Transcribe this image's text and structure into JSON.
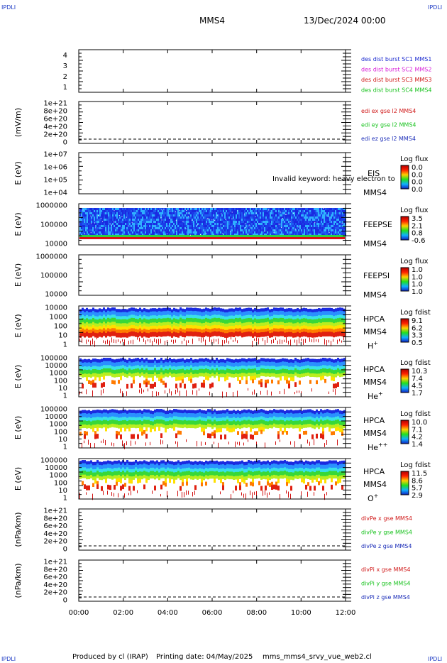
{
  "header": {
    "corner_label": "IPDLI",
    "spacecraft": "MMS4",
    "date_time": "13/Dec/2024 00:00"
  },
  "footer": {
    "produced_by": "Produced by cl (IRAP)",
    "printing_date": "Printing date: 04/May/2025",
    "script_name": "mms_mms4_srvy_vue_web2.cl"
  },
  "colors": {
    "blue": "#1c2bd0",
    "magenta": "#d81fd8",
    "red": "#d01818",
    "green": "#17c21d",
    "dark_blue": "#1b2db8"
  },
  "chart_data": [
    {
      "type": "line",
      "panel": "burst",
      "ylabel": "",
      "ylim": [
        0.5,
        4.5
      ],
      "yticks": [
        "1",
        "2",
        "3",
        "4"
      ],
      "legend": [
        {
          "text": "des dist burst SC1 MMS1",
          "color": "#1c2bd0"
        },
        {
          "text": "des dist burst SC2 MMS2",
          "color": "#d81fd8"
        },
        {
          "text": "des dist burst SC3 MMS3",
          "color": "#d01818"
        },
        {
          "text": "des dist burst SC4 MMS4",
          "color": "#17c21d"
        }
      ],
      "series": []
    },
    {
      "type": "line",
      "panel": "edi",
      "ylabel": "(mV/m)",
      "yticks": [
        "0",
        "2e+20",
        "4e+20",
        "6e+20",
        "8e+20",
        "1e+21"
      ],
      "zero_line": true,
      "legend": [
        {
          "text": "edi ex gse l2 MMS4",
          "color": "#d01818"
        },
        {
          "text": "edi ey gse l2 MMS4",
          "color": "#17c21d"
        },
        {
          "text": "edi ez gse l2 MMS4",
          "color": "#1b2db8"
        }
      ],
      "series": []
    },
    {
      "type": "heatmap",
      "panel": "eis",
      "ylabel": "E (eV)",
      "yticks": [
        "1e+04",
        "1e+05",
        "1e+06",
        "1e+07"
      ],
      "labels": [
        "EIS",
        "MMS4"
      ],
      "overlay_text": "Invalid keyword: heavy electron to",
      "colorbar": {
        "title": "Log flux",
        "ticks": [
          "0.0",
          "0.0",
          "0.0",
          "0.0"
        ]
      },
      "filled": false
    },
    {
      "type": "heatmap",
      "panel": "feeps_e",
      "ylabel": "E (eV)",
      "yticks": [
        "10000",
        "100000",
        "1000000"
      ],
      "labels": [
        "FEEPSE",
        "MMS4"
      ],
      "colorbar": {
        "title": "Log flux",
        "ticks": [
          "3.5",
          "2.1",
          "0.8",
          "-0.6"
        ]
      },
      "filled": true,
      "pattern": "feeps"
    },
    {
      "type": "heatmap",
      "panel": "feeps_i",
      "ylabel": "E (eV)",
      "yticks": [
        "10000",
        "100000",
        "1000000"
      ],
      "labels": [
        "FEEPSI",
        "MMS4"
      ],
      "colorbar": {
        "title": "Log flux",
        "ticks": [
          "1.0",
          "1.0",
          "1.0",
          "1.0"
        ]
      },
      "filled": false
    },
    {
      "type": "heatmap",
      "panel": "hpca_h",
      "ylabel": "E (eV)",
      "yticks": [
        "1",
        "10",
        "100",
        "1000",
        "10000"
      ],
      "labels": [
        "HPCA",
        "MMS4"
      ],
      "species": "H",
      "species_sup": "+",
      "colorbar": {
        "title": "Log fdist",
        "ticks": [
          "9.1",
          "6.2",
          "3.3",
          "0.5"
        ]
      },
      "filled": true,
      "pattern": "hpca"
    },
    {
      "type": "heatmap",
      "panel": "hpca_he1",
      "ylabel": "E (eV)",
      "yticks": [
        "1",
        "10",
        "100",
        "1000",
        "10000",
        "100000"
      ],
      "labels": [
        "HPCA",
        "MMS4"
      ],
      "species": "He",
      "species_sup": "+",
      "colorbar": {
        "title": "Log fdist",
        "ticks": [
          "10.3",
          "7.4",
          "4.5",
          "1.7"
        ]
      },
      "filled": true,
      "pattern": "hpca"
    },
    {
      "type": "heatmap",
      "panel": "hpca_he2",
      "ylabel": "E (eV)",
      "yticks": [
        "1",
        "10",
        "100",
        "1000",
        "10000",
        "100000"
      ],
      "labels": [
        "HPCA",
        "MMS4"
      ],
      "species": "He",
      "species_sup": "++",
      "colorbar": {
        "title": "Log fdist",
        "ticks": [
          "10.0",
          "7.1",
          "4.2",
          "1.4"
        ]
      },
      "filled": true,
      "pattern": "hpca"
    },
    {
      "type": "heatmap",
      "panel": "hpca_o",
      "ylabel": "E (eV)",
      "yticks": [
        "1",
        "10",
        "100",
        "1000",
        "10000",
        "100000"
      ],
      "labels": [
        "HPCA",
        "MMS4"
      ],
      "species": "O",
      "species_sup": "+",
      "colorbar": {
        "title": "Log fdist",
        "ticks": [
          "11.5",
          "8.6",
          "5.7",
          "2.9"
        ]
      },
      "filled": true,
      "pattern": "hpca"
    },
    {
      "type": "line",
      "panel": "divpe",
      "ylabel": "(nPa/km)",
      "yticks": [
        "0",
        "2e+20",
        "4e+20",
        "6e+20",
        "8e+20",
        "1e+21"
      ],
      "zero_line": true,
      "legend": [
        {
          "text": "divPe x gse MMS4",
          "color": "#d01818"
        },
        {
          "text": "divPe y gse MMS4",
          "color": "#17c21d"
        },
        {
          "text": "divPe z gse MMS4",
          "color": "#1b2db8"
        }
      ],
      "series": []
    },
    {
      "type": "line",
      "panel": "divpi",
      "ylabel": "(nPa/km)",
      "yticks": [
        "0",
        "2e+20",
        "4e+20",
        "6e+20",
        "8e+20",
        "1e+21"
      ],
      "zero_line": true,
      "legend": [
        {
          "text": "divPi x gse MMS4",
          "color": "#d01818"
        },
        {
          "text": "divPi y gse MMS4",
          "color": "#17c21d"
        },
        {
          "text": "divPi z gse MMS4",
          "color": "#1b2db8"
        }
      ],
      "series": []
    }
  ],
  "time_axis": {
    "ticks": [
      "00:00",
      "02:00",
      "04:00",
      "06:00",
      "08:00",
      "10:00",
      "12:00"
    ],
    "range_hours": [
      0,
      12
    ]
  }
}
